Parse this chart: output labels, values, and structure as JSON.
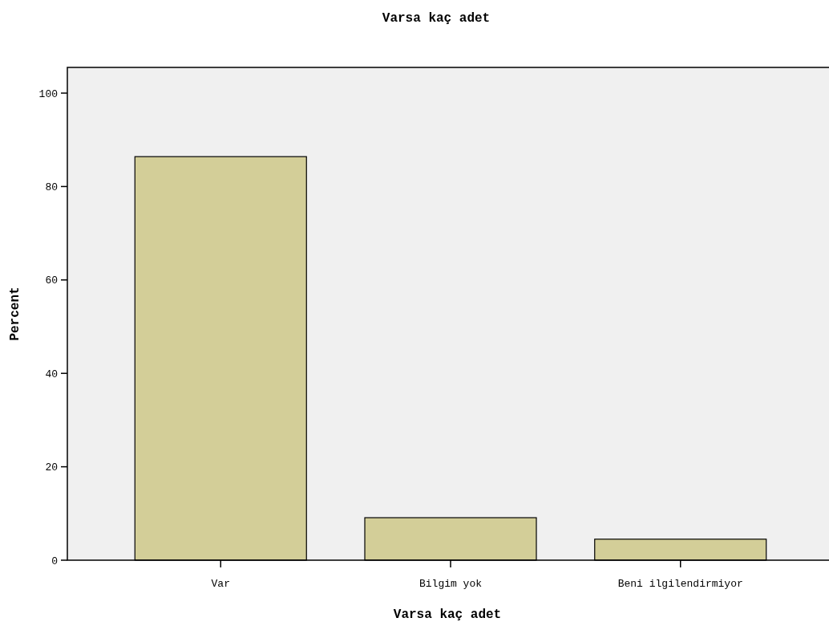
{
  "chart_data": {
    "type": "bar",
    "title": "Varsa kaç adet",
    "xlabel": "Varsa kaç adet",
    "ylabel": "Percent",
    "categories": [
      "Var",
      "Bilgim yok",
      "Beni ilgilendirmiyor"
    ],
    "values": [
      86.4,
      9.1,
      4.5
    ],
    "color": "#d3ce98",
    "ylim": [
      0,
      105.5
    ],
    "yticks": [
      0,
      20,
      40,
      60,
      80,
      100
    ],
    "grid": false
  }
}
